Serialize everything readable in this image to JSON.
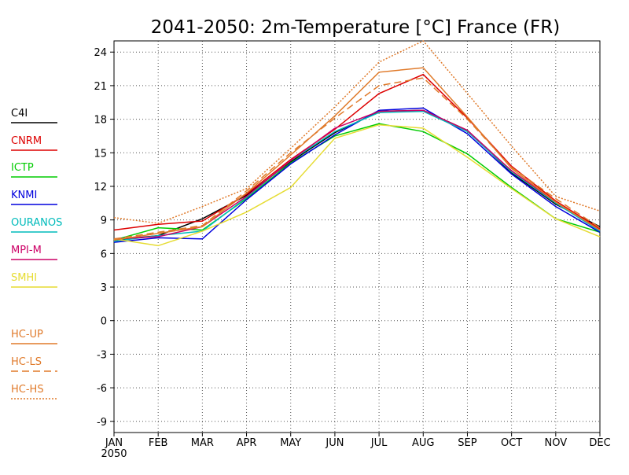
{
  "chart_data": {
    "type": "line",
    "title": "2041-2050: 2m-Temperature [°C] France (FR)",
    "categories": [
      "JAN",
      "FEB",
      "MAR",
      "APR",
      "MAY",
      "JUN",
      "JUL",
      "AUG",
      "SEP",
      "OCT",
      "NOV",
      "DEC"
    ],
    "x_sublabel": "2050",
    "ylim": [
      -10,
      25
    ],
    "yticks": [
      -9,
      -6,
      -3,
      0,
      3,
      6,
      9,
      12,
      15,
      18,
      21,
      24
    ],
    "grid": true,
    "legend_position": "left",
    "series": [
      {
        "name": "C4I",
        "color": "#000000",
        "dash": "solid",
        "values": [
          7.2,
          7.6,
          9.1,
          11.2,
          14.2,
          16.8,
          18.7,
          18.8,
          17.0,
          13.2,
          10.4,
          8.4
        ]
      },
      {
        "name": "CNRM",
        "color": "#dd0000",
        "dash": "solid",
        "values": [
          8.1,
          8.6,
          8.9,
          11.3,
          14.4,
          17.1,
          20.3,
          22.0,
          18.1,
          13.8,
          10.7,
          8.2
        ]
      },
      {
        "name": "ICTP",
        "color": "#00cc00",
        "dash": "solid",
        "values": [
          7.2,
          8.3,
          8.1,
          10.9,
          14.1,
          16.5,
          17.6,
          16.9,
          14.9,
          11.9,
          9.1,
          7.9
        ]
      },
      {
        "name": "KNMI",
        "color": "#0000dd",
        "dash": "solid",
        "values": [
          7.0,
          7.4,
          7.3,
          10.8,
          14.0,
          16.6,
          18.8,
          19.0,
          16.7,
          13.1,
          10.2,
          7.9
        ]
      },
      {
        "name": "OURANOS",
        "color": "#00bbbb",
        "dash": "solid",
        "values": [
          7.1,
          7.6,
          8.0,
          11.0,
          14.3,
          16.9,
          18.6,
          18.7,
          16.9,
          13.3,
          10.5,
          8.0
        ]
      },
      {
        "name": "MPI-M",
        "color": "#cc0066",
        "dash": "solid",
        "values": [
          7.3,
          7.5,
          8.4,
          11.1,
          14.3,
          17.2,
          18.7,
          18.8,
          17.0,
          13.4,
          10.6,
          8.1
        ]
      },
      {
        "name": "SMHI",
        "color": "#e6dc32",
        "dash": "solid",
        "values": [
          7.3,
          6.7,
          8.0,
          9.7,
          11.9,
          16.3,
          17.5,
          17.2,
          14.6,
          11.8,
          9.1,
          7.5
        ]
      },
      {
        "name": "HC-UP",
        "color": "#e07a2a",
        "dash": "solid",
        "values": [
          7.2,
          7.8,
          8.4,
          11.4,
          14.8,
          18.3,
          22.2,
          22.6,
          18.2,
          13.6,
          10.6,
          8.1
        ]
      },
      {
        "name": "HC-LS",
        "color": "#e07a2a",
        "dash": "dashed",
        "values": [
          7.3,
          7.9,
          8.5,
          11.6,
          15.0,
          18.1,
          21.0,
          21.7,
          18.0,
          13.7,
          10.9,
          8.3
        ]
      },
      {
        "name": "HC-HS",
        "color": "#e07a2a",
        "dash": "dotted",
        "values": [
          9.2,
          8.7,
          10.2,
          11.8,
          15.4,
          19.1,
          23.1,
          25.0,
          20.3,
          15.6,
          11.1,
          9.8
        ]
      }
    ]
  }
}
